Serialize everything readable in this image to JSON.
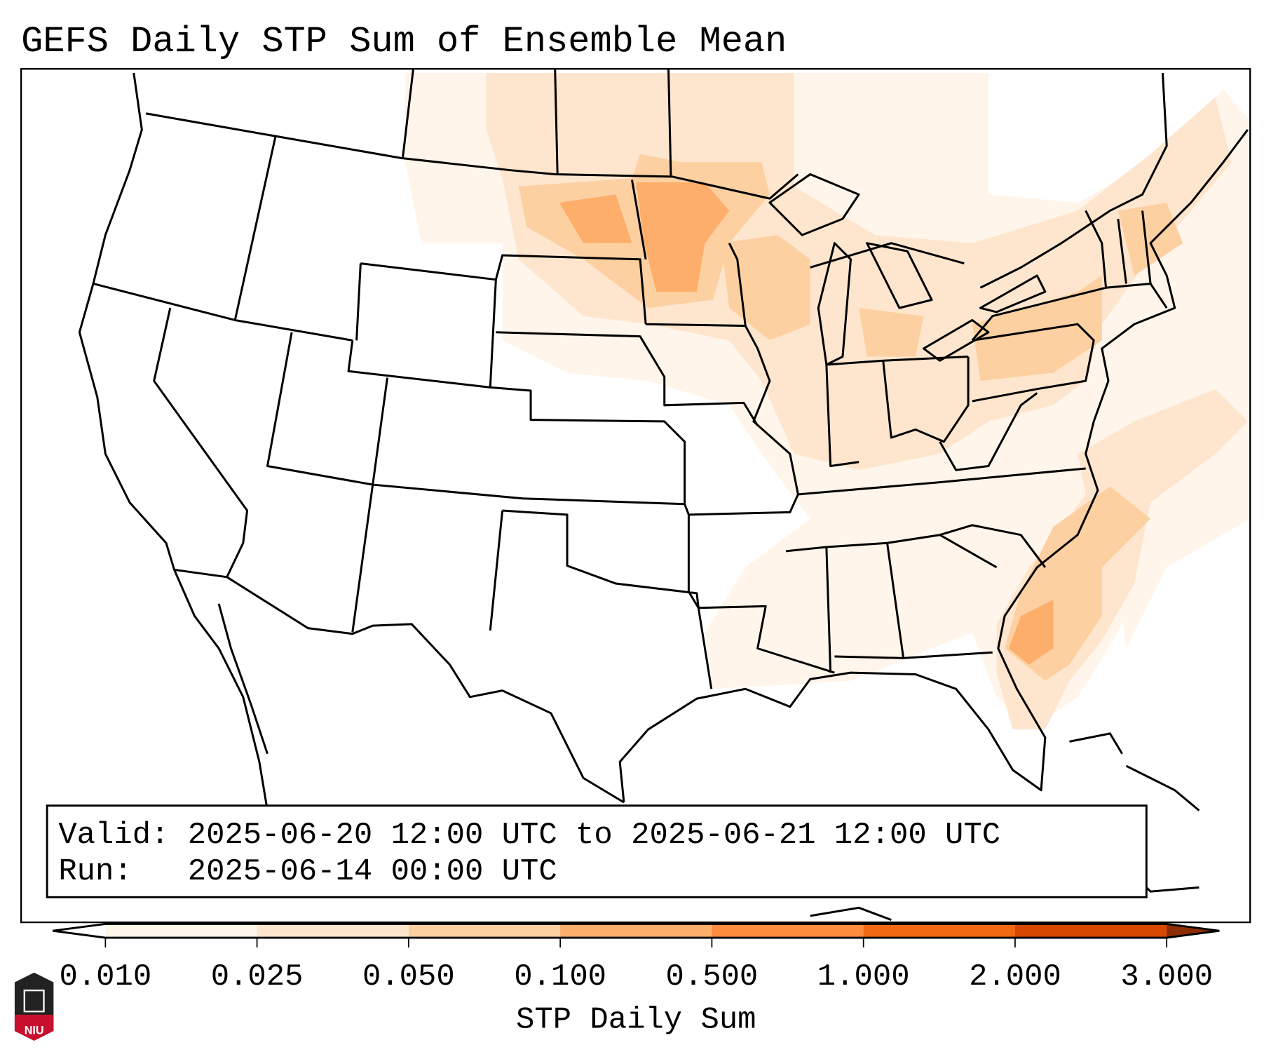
{
  "title": "GEFS Daily STP Sum of Ensemble Mean",
  "info_box": {
    "valid_line": "Valid: 2025-06-20 12:00 UTC to 2025-06-21 12:00 UTC",
    "run_line": "Run:   2025-06-14 00:00 UTC"
  },
  "logo": {
    "text": "NIU"
  },
  "chart_data": {
    "type": "heatmap",
    "title": "GEFS Daily STP Sum of Ensemble Mean",
    "colorbar_label": "STP Daily Sum",
    "bounds": [
      "0.010",
      "0.025",
      "0.050",
      "0.100",
      "0.500",
      "1.000",
      "2.000",
      "3.000"
    ],
    "bin_colors": [
      "#fff5eb",
      "#fee6ce",
      "#fdd0a2",
      "#fdae6b",
      "#fd8d3c",
      "#f16913",
      "#d94801"
    ],
    "over_color": "#8c2d04",
    "under_color": "#ffffff",
    "extend": "both",
    "regions": [
      {
        "name": "Minnesota / eastern North Dakota",
        "level": "0.100-0.500"
      },
      {
        "name": "Upper Midwest / Great Lakes / Northeast",
        "level": "0.025-0.100"
      },
      {
        "name": "Carolinas / Georgia coast",
        "level": "0.100-0.500"
      },
      {
        "name": "Western Atlantic offshore",
        "level": "0.010-0.050"
      }
    ]
  }
}
